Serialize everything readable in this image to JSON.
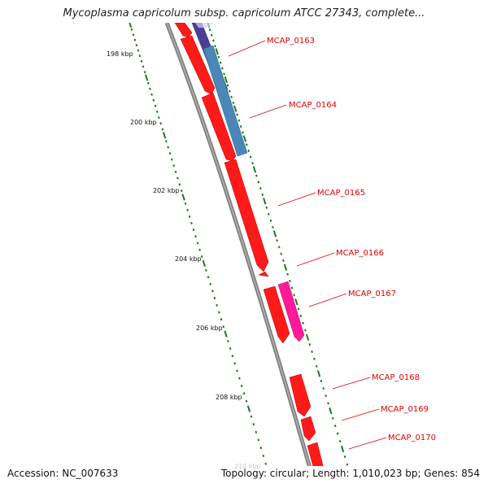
{
  "title": "Mycoplasma capricolum subsp. capricolum ATCC 27343, complete...",
  "footer": {
    "accession": "Accession: NC_007633",
    "topology": "Topology: circular; Length: 1,010,023 bp; Genes: 854"
  },
  "scale_ticks": [
    "198 kbp",
    "200 kbp",
    "202 kbp",
    "204 kbp",
    "206 kbp",
    "208 kbp",
    "210 kbp"
  ],
  "gene_labels": [
    "MCAP_0163",
    "MCAP_0164",
    "MCAP_0165",
    "MCAP_0166",
    "MCAP_0167",
    "MCAP_0168",
    "MCAP_0169",
    "MCAP_0170"
  ],
  "colors": {
    "backbone": "#808080",
    "gene_forward": "#ff0000",
    "cog_dark": "#3f3f8f",
    "cog_steel": "#4682b4",
    "cog_magenta": "#ff1493",
    "tick": "#1a7a1a",
    "label": "#e00000"
  }
}
